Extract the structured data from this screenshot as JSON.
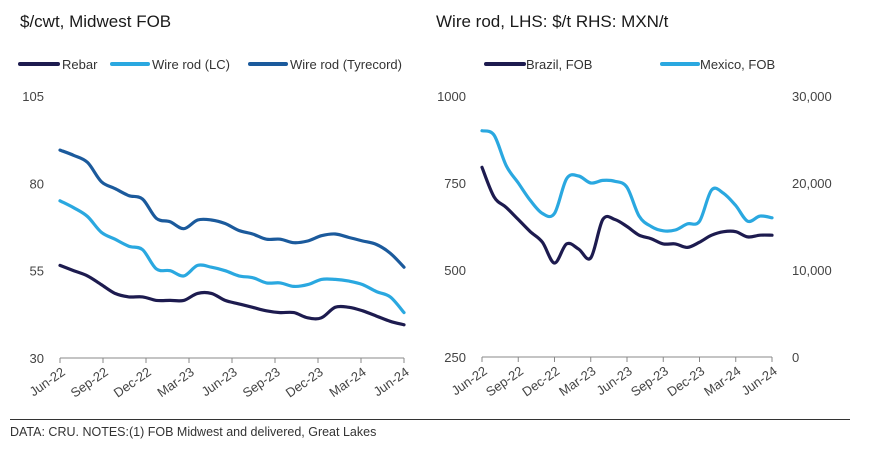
{
  "left_title": "$/cwt, Midwest FOB",
  "right_title": "Wire rod, LHS: $/t  RHS: MXN/t",
  "footer": "DATA:  CRU. NOTES:(1) FOB Midwest and delivered, Great Lakes",
  "colors": {
    "rebar": "#1d1b4f",
    "wire_lc": "#2aa8e0",
    "wire_tyre": "#1b5a9c",
    "brazil": "#1d1b4f",
    "mexico": "#2aa8e0",
    "axis": "#888888"
  },
  "chart_data": [
    {
      "type": "line",
      "title": "$/cwt, Midwest FOB",
      "x_ticks": [
        "Jun-22",
        "Sep-22",
        "Dec-22",
        "Mar-23",
        "Jun-23",
        "Sep-23",
        "Dec-23",
        "Mar-24",
        "Jun-24"
      ],
      "ylim": [
        30,
        105
      ],
      "y_ticks": [
        105,
        80,
        55,
        30
      ],
      "series": [
        {
          "name": "Rebar",
          "values": [
            56.5,
            55,
            53.5,
            51,
            48.5,
            47.5,
            47.5,
            46.5,
            46.5,
            46.5,
            48.5,
            48.5,
            46.5,
            45.5,
            44.5,
            43.5,
            43,
            43,
            41.5,
            41.5,
            44.5,
            44.5,
            43.5,
            42,
            40.5,
            39.5
          ]
        },
        {
          "name": "Wire rod (LC)",
          "values": [
            75,
            73,
            70.5,
            66,
            64,
            62,
            61,
            55.5,
            55,
            53.5,
            56.5,
            56,
            55,
            53.5,
            53,
            51.5,
            51.5,
            50.5,
            51,
            52.5,
            52.5,
            52,
            51,
            49,
            47.5,
            43
          ]
        },
        {
          "name": "Wire rod (Tyrecord)",
          "values": [
            89.5,
            88,
            86,
            80.5,
            78.5,
            76.5,
            75.5,
            70,
            69,
            67,
            69.5,
            69.5,
            68.5,
            66.5,
            65.5,
            64,
            64,
            63,
            63.5,
            65,
            65.5,
            64.5,
            63.5,
            62.5,
            60,
            56
          ]
        }
      ]
    },
    {
      "type": "line",
      "title": "Wire rod, LHS: $/t  RHS: MXN/t",
      "x_ticks": [
        "Jun-22",
        "Sep-22",
        "Dec-22",
        "Mar-23",
        "Jun-23",
        "Sep-23",
        "Dec-23",
        "Mar-24",
        "Jun-24"
      ],
      "ylim_left": [
        250,
        1000
      ],
      "ylim_right": [
        0,
        30000
      ],
      "y_ticks_left": [
        1000,
        750,
        500,
        250
      ],
      "y_ticks_right": [
        "30,000",
        "20,000",
        "10,000",
        "0"
      ],
      "series": [
        {
          "name": "Brazil, FOB",
          "axis": "left",
          "values": [
            795,
            710,
            680,
            645,
            610,
            580,
            520,
            575,
            560,
            535,
            645,
            645,
            625,
            600,
            590,
            575,
            575,
            565,
            580,
            600,
            610,
            610,
            595,
            600,
            600
          ]
        },
        {
          "name": "Mexico, FOB",
          "axis": "right",
          "values": [
            26000,
            25500,
            22000,
            20000,
            18000,
            16500,
            16500,
            20500,
            20800,
            20000,
            20300,
            20200,
            19500,
            16200,
            15000,
            14500,
            14600,
            15300,
            15600,
            19200,
            18800,
            17400,
            15600,
            16200,
            16000
          ]
        }
      ]
    }
  ]
}
